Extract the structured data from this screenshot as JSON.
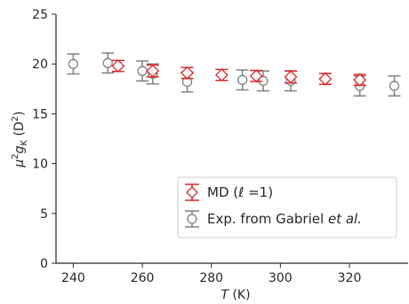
{
  "chart_data": {
    "type": "scatter",
    "xlabel": "T (K)",
    "ylabel": "μ²g_K (D²)",
    "xlim": [
      235,
      337
    ],
    "ylim": [
      0,
      25
    ],
    "xticks": [
      240,
      260,
      280,
      300,
      320
    ],
    "yticks": [
      0,
      5,
      10,
      15,
      20,
      25
    ],
    "grid": false,
    "legend_position": "lower-right",
    "series": [
      {
        "name": "MD (ℓ=1)",
        "marker": "diamond",
        "color": "#d62728",
        "x": [
          253,
          263,
          273,
          283,
          293,
          303,
          313,
          323
        ],
        "y": [
          19.8,
          19.3,
          19.1,
          18.9,
          18.8,
          18.7,
          18.5,
          18.4
        ],
        "yerr": [
          0.55,
          0.6,
          0.55,
          0.55,
          0.55,
          0.6,
          0.55,
          0.55
        ]
      },
      {
        "name": "Exp. from Gabriel et al.",
        "marker": "circle",
        "color": "#7f7f7f",
        "x": [
          240,
          250,
          260,
          263,
          273,
          289,
          295,
          303,
          323,
          333
        ],
        "y": [
          20.0,
          20.1,
          19.3,
          19.0,
          18.2,
          18.4,
          18.3,
          18.3,
          17.8,
          17.8
        ],
        "yerr": [
          1.0,
          1.0,
          1.0,
          1.0,
          1.0,
          1.0,
          1.0,
          1.0,
          1.0,
          1.0
        ]
      }
    ]
  },
  "labels": {
    "xlabel_var": "T",
    "xlabel_unit": " (K)",
    "ylabel_mu": "μ",
    "ylabel_sup": "2",
    "ylabel_g": "g",
    "ylabel_sub": "K",
    "ylabel_unit": " (D",
    "ylabel_unit_sup": "2",
    "ylabel_close": ")",
    "legend_md_prefix": "MD (",
    "legend_md_ell": "ℓ",
    "legend_md_suffix": " =1)",
    "legend_exp_prefix": "Exp. from Gabriel ",
    "legend_exp_italic": "et al."
  }
}
